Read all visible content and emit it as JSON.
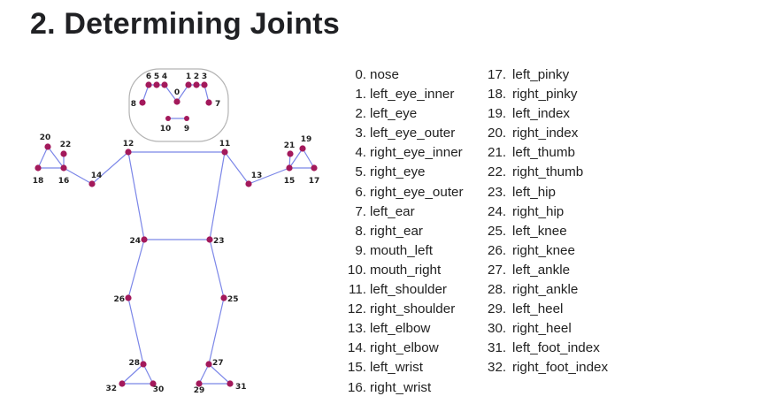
{
  "title": "2. Determining Joints",
  "colors": {
    "joint": "#a3195b",
    "line": "#7b86e8",
    "head_outline": "#b3b3b3"
  },
  "diagram": {
    "landmarks": [
      {
        "id": "0"
      },
      {
        "id": "1"
      },
      {
        "id": "2"
      },
      {
        "id": "3"
      },
      {
        "id": "4"
      },
      {
        "id": "5"
      },
      {
        "id": "6"
      },
      {
        "id": "7"
      },
      {
        "id": "8"
      },
      {
        "id": "9"
      },
      {
        "id": "10"
      },
      {
        "id": "11"
      },
      {
        "id": "12"
      },
      {
        "id": "13"
      },
      {
        "id": "14"
      },
      {
        "id": "15"
      },
      {
        "id": "16"
      },
      {
        "id": "17"
      },
      {
        "id": "18"
      },
      {
        "id": "19"
      },
      {
        "id": "20"
      },
      {
        "id": "21"
      },
      {
        "id": "22"
      },
      {
        "id": "23"
      },
      {
        "id": "24"
      },
      {
        "id": "25"
      },
      {
        "id": "26"
      },
      {
        "id": "27"
      },
      {
        "id": "28"
      },
      {
        "id": "29"
      },
      {
        "id": "30"
      },
      {
        "id": "31"
      },
      {
        "id": "32"
      }
    ]
  },
  "joints": [
    {
      "num": "0.",
      "name": "nose"
    },
    {
      "num": "1.",
      "name": "left_eye_inner"
    },
    {
      "num": "2.",
      "name": "left_eye"
    },
    {
      "num": "3.",
      "name": "left_eye_outer"
    },
    {
      "num": "4.",
      "name": "right_eye_inner"
    },
    {
      "num": "5.",
      "name": "right_eye"
    },
    {
      "num": "6.",
      "name": "right_eye_outer"
    },
    {
      "num": "7.",
      "name": "left_ear"
    },
    {
      "num": "8.",
      "name": "right_ear"
    },
    {
      "num": "9.",
      "name": "mouth_left"
    },
    {
      "num": "10.",
      "name": "mouth_right"
    },
    {
      "num": "11.",
      "name": "left_shoulder"
    },
    {
      "num": "12.",
      "name": "right_shoulder"
    },
    {
      "num": "13.",
      "name": "left_elbow"
    },
    {
      "num": "14.",
      "name": "right_elbow"
    },
    {
      "num": "15.",
      "name": "left_wrist"
    },
    {
      "num": "16.",
      "name": "right_wrist"
    },
    {
      "num": "17.",
      "name": "left_pinky"
    },
    {
      "num": "18.",
      "name": "right_pinky"
    },
    {
      "num": "19.",
      "name": "left_index"
    },
    {
      "num": "20.",
      "name": "right_index"
    },
    {
      "num": "21.",
      "name": "left_thumb"
    },
    {
      "num": "22.",
      "name": "right_thumb"
    },
    {
      "num": "23.",
      "name": "left_hip"
    },
    {
      "num": "24.",
      "name": "right_hip"
    },
    {
      "num": "25.",
      "name": "left_knee"
    },
    {
      "num": "26.",
      "name": "right_knee"
    },
    {
      "num": "27.",
      "name": "left_ankle"
    },
    {
      "num": "28.",
      "name": "right_ankle"
    },
    {
      "num": "29.",
      "name": "left_heel"
    },
    {
      "num": "30.",
      "name": "right_heel"
    },
    {
      "num": "31.",
      "name": "left_foot_index"
    },
    {
      "num": "32.",
      "name": "right_foot_index"
    }
  ]
}
